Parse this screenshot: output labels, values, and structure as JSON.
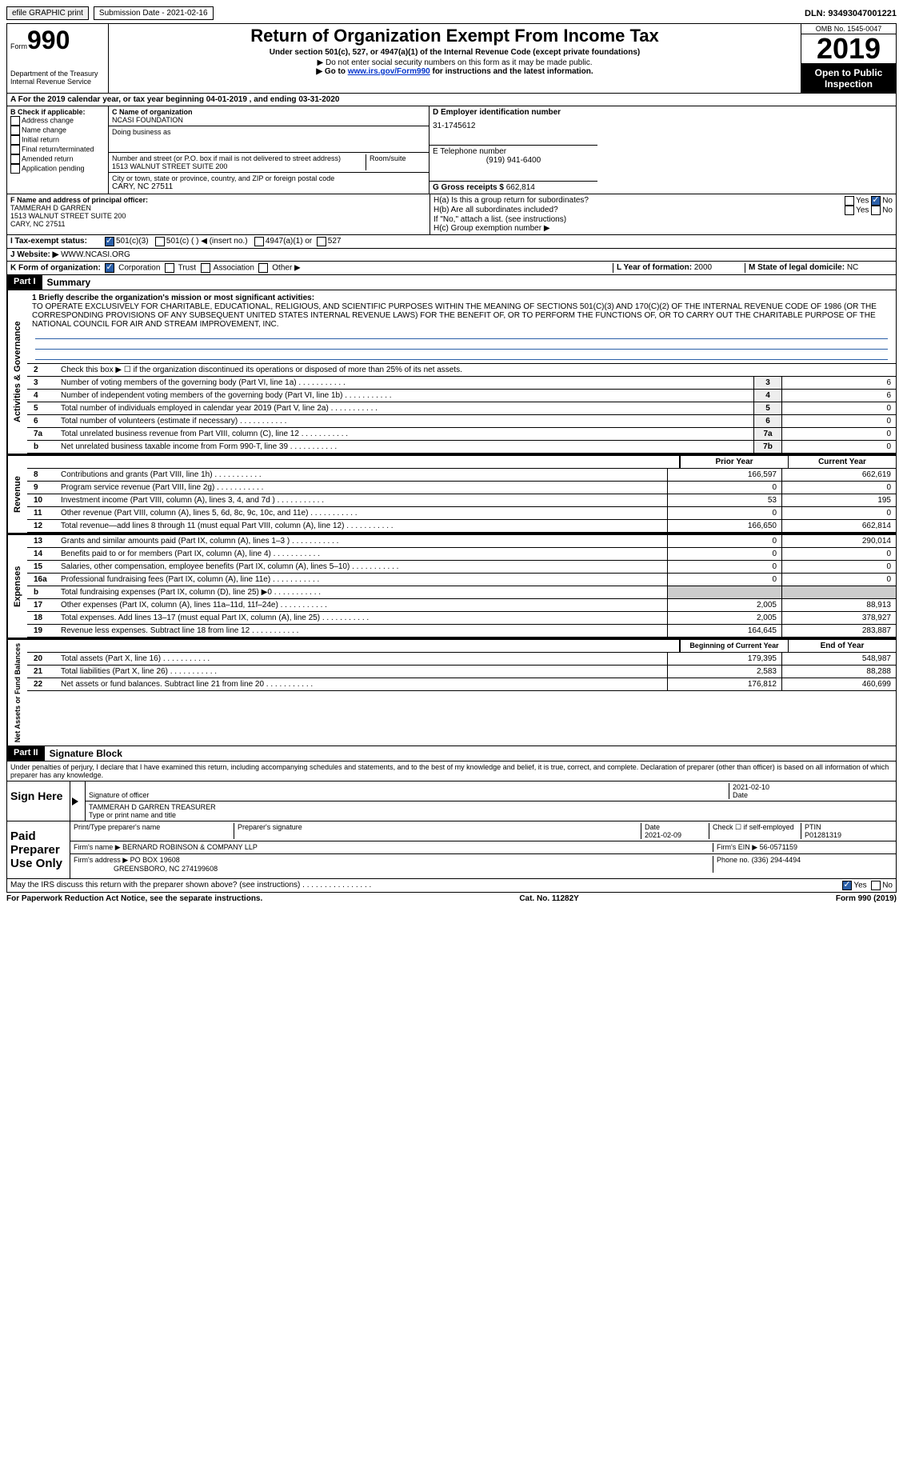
{
  "topbar": {
    "efile": "efile GRAPHIC print",
    "sub_label": "Submission Date - 2021-02-16",
    "dln": "DLN: 93493047001221"
  },
  "header": {
    "form_word": "Form",
    "form_num": "990",
    "dept1": "Department of the Treasury",
    "dept2": "Internal Revenue Service",
    "title": "Return of Organization Exempt From Income Tax",
    "subtitle": "Under section 501(c), 527, or 4947(a)(1) of the Internal Revenue Code (except private foundations)",
    "note1": "▶ Do not enter social security numbers on this form as it may be made public.",
    "note2_pre": "▶ Go to ",
    "note2_link": "www.irs.gov/Form990",
    "note2_post": " for instructions and the latest information.",
    "omb": "OMB No. 1545-0047",
    "year": "2019",
    "open": "Open to Public Inspection"
  },
  "periodA": "A For the 2019 calendar year, or tax year beginning 04-01-2019   , and ending 03-31-2020",
  "B": {
    "label": "B Check if applicable:",
    "items": [
      "Address change",
      "Name change",
      "Initial return",
      "Final return/terminated",
      "Amended return",
      "Application pending"
    ]
  },
  "C": {
    "label": "C Name of organization",
    "name": "NCASI FOUNDATION",
    "dba_label": "Doing business as",
    "addr_label": "Number and street (or P.O. box if mail is not delivered to street address)",
    "addr": "1513 WALNUT STREET SUITE 200",
    "room_label": "Room/suite",
    "city_label": "City or town, state or province, country, and ZIP or foreign postal code",
    "city": "CARY, NC  27511"
  },
  "D": {
    "label": "D Employer identification number",
    "value": "31-1745612"
  },
  "E": {
    "label": "E Telephone number",
    "value": "(919) 941-6400"
  },
  "G": {
    "label": "G Gross receipts $",
    "value": "662,814"
  },
  "F": {
    "label": "F  Name and address of principal officer:",
    "name": "TAMMERAH D GARREN",
    "addr1": "1513 WALNUT STREET SUITE 200",
    "addr2": "CARY, NC  27511"
  },
  "H": {
    "a": "H(a)  Is this a group return for subordinates?",
    "b": "H(b)  Are all subordinates included?",
    "b_note": "If \"No,\" attach a list. (see instructions)",
    "c": "H(c)  Group exemption number ▶",
    "yes": "Yes",
    "no": "No"
  },
  "I": {
    "label": "I   Tax-exempt status:",
    "o1": "501(c)(3)",
    "o2": "501(c) (  ) ◀ (insert no.)",
    "o3": "4947(a)(1) or",
    "o4": "527"
  },
  "J": {
    "label": "J   Website: ▶",
    "value": "WWW.NCASI.ORG"
  },
  "K": {
    "label": "K Form of organization:",
    "o1": "Corporation",
    "o2": "Trust",
    "o3": "Association",
    "o4": "Other ▶"
  },
  "L": {
    "label": "L Year of formation:",
    "value": "2000"
  },
  "M": {
    "label": "M State of legal domicile:",
    "value": "NC"
  },
  "parts": {
    "p1": "Part I",
    "p1_title": "Summary",
    "p2": "Part II",
    "p2_title": "Signature Block"
  },
  "side": {
    "ag": "Activities & Governance",
    "rev": "Revenue",
    "exp": "Expenses",
    "net": "Net Assets or Fund Balances"
  },
  "summary": {
    "l1_label": "1  Briefly describe the organization's mission or most significant activities:",
    "l1_text": "TO OPERATE EXCLUSIVELY FOR CHARITABLE, EDUCATIONAL, RELIGIOUS, AND SCIENTIFIC PURPOSES WITHIN THE MEANING OF SECTIONS 501(C)(3) AND 170(C)(2) OF THE INTERNAL REVENUE CODE OF 1986 (OR THE CORRESPONDING PROVISIONS OF ANY SUBSEQUENT UNITED STATES INTERNAL REVENUE LAWS) FOR THE BENEFIT OF, OR TO PERFORM THE FUNCTIONS OF, OR TO CARRY OUT THE CHARITABLE PURPOSE OF THE NATIONAL COUNCIL FOR AIR AND STREAM IMPROVEMENT, INC.",
    "l2": "Check this box ▶ ☐  if the organization discontinued its operations or disposed of more than 25% of its net assets.",
    "rows_single": [
      {
        "n": "3",
        "t": "Number of voting members of the governing body (Part VI, line 1a)",
        "box": "3",
        "v": "6"
      },
      {
        "n": "4",
        "t": "Number of independent voting members of the governing body (Part VI, line 1b)",
        "box": "4",
        "v": "6"
      },
      {
        "n": "5",
        "t": "Total number of individuals employed in calendar year 2019 (Part V, line 2a)",
        "box": "5",
        "v": "0"
      },
      {
        "n": "6",
        "t": "Total number of volunteers (estimate if necessary)",
        "box": "6",
        "v": "0"
      },
      {
        "n": "7a",
        "t": "Total unrelated business revenue from Part VIII, column (C), line 12",
        "box": "7a",
        "v": "0"
      },
      {
        "n": "b",
        "t": "Net unrelated business taxable income from Form 990-T, line 39",
        "box": "7b",
        "v": "0"
      }
    ],
    "col_prior": "Prior Year",
    "col_current": "Current Year",
    "rev_rows": [
      {
        "n": "8",
        "t": "Contributions and grants (Part VIII, line 1h)",
        "p": "166,597",
        "c": "662,619"
      },
      {
        "n": "9",
        "t": "Program service revenue (Part VIII, line 2g)",
        "p": "0",
        "c": "0"
      },
      {
        "n": "10",
        "t": "Investment income (Part VIII, column (A), lines 3, 4, and 7d )",
        "p": "53",
        "c": "195"
      },
      {
        "n": "11",
        "t": "Other revenue (Part VIII, column (A), lines 5, 6d, 8c, 9c, 10c, and 11e)",
        "p": "0",
        "c": "0"
      },
      {
        "n": "12",
        "t": "Total revenue—add lines 8 through 11 (must equal Part VIII, column (A), line 12)",
        "p": "166,650",
        "c": "662,814"
      }
    ],
    "exp_rows": [
      {
        "n": "13",
        "t": "Grants and similar amounts paid (Part IX, column (A), lines 1–3 )",
        "p": "0",
        "c": "290,014"
      },
      {
        "n": "14",
        "t": "Benefits paid to or for members (Part IX, column (A), line 4)",
        "p": "0",
        "c": "0"
      },
      {
        "n": "15",
        "t": "Salaries, other compensation, employee benefits (Part IX, column (A), lines 5–10)",
        "p": "0",
        "c": "0"
      },
      {
        "n": "16a",
        "t": "Professional fundraising fees (Part IX, column (A), line 11e)",
        "p": "0",
        "c": "0"
      },
      {
        "n": "b",
        "t": "Total fundraising expenses (Part IX, column (D), line 25) ▶0",
        "p": "",
        "c": "",
        "grey": true
      },
      {
        "n": "17",
        "t": "Other expenses (Part IX, column (A), lines 11a–11d, 11f–24e)",
        "p": "2,005",
        "c": "88,913"
      },
      {
        "n": "18",
        "t": "Total expenses. Add lines 13–17 (must equal Part IX, column (A), line 25)",
        "p": "2,005",
        "c": "378,927"
      },
      {
        "n": "19",
        "t": "Revenue less expenses. Subtract line 18 from line 12",
        "p": "164,645",
        "c": "283,887"
      }
    ],
    "col_begin": "Beginning of Current Year",
    "col_end": "End of Year",
    "net_rows": [
      {
        "n": "20",
        "t": "Total assets (Part X, line 16)",
        "p": "179,395",
        "c": "548,987"
      },
      {
        "n": "21",
        "t": "Total liabilities (Part X, line 26)",
        "p": "2,583",
        "c": "88,288"
      },
      {
        "n": "22",
        "t": "Net assets or fund balances. Subtract line 21 from line 20",
        "p": "176,812",
        "c": "460,699"
      }
    ]
  },
  "sig": {
    "declare": "Under penalties of perjury, I declare that I have examined this return, including accompanying schedules and statements, and to the best of my knowledge and belief, it is true, correct, and complete. Declaration of preparer (other than officer) is based on all information of which preparer has any knowledge.",
    "sign_here": "Sign Here",
    "sig_officer": "Signature of officer",
    "date": "Date",
    "sig_date": "2021-02-10",
    "name_title": "TAMMERAH D GARREN  TREASURER",
    "type_name": "Type or print name and title",
    "paid": "Paid Preparer Use Only",
    "prep_name_lbl": "Print/Type preparer's name",
    "prep_sig_lbl": "Preparer's signature",
    "prep_date_lbl": "Date",
    "prep_date": "2021-02-09",
    "self_emp": "Check ☐ if self-employed",
    "ptin_lbl": "PTIN",
    "ptin": "P01281319",
    "firm_name_lbl": "Firm's name   ▶",
    "firm_name": "BERNARD ROBINSON & COMPANY LLP",
    "firm_ein_lbl": "Firm's EIN ▶",
    "firm_ein": "56-0571159",
    "firm_addr_lbl": "Firm's address ▶",
    "firm_addr1": "PO BOX 19608",
    "firm_addr2": "GREENSBORO, NC  274199608",
    "phone_lbl": "Phone no.",
    "phone": "(336) 294-4494",
    "discuss": "May the IRS discuss this return with the preparer shown above? (see instructions)",
    "yes": "Yes",
    "no": "No"
  },
  "footer": {
    "left": "For Paperwork Reduction Act Notice, see the separate instructions.",
    "mid": "Cat. No. 11282Y",
    "right": "Form 990 (2019)"
  }
}
